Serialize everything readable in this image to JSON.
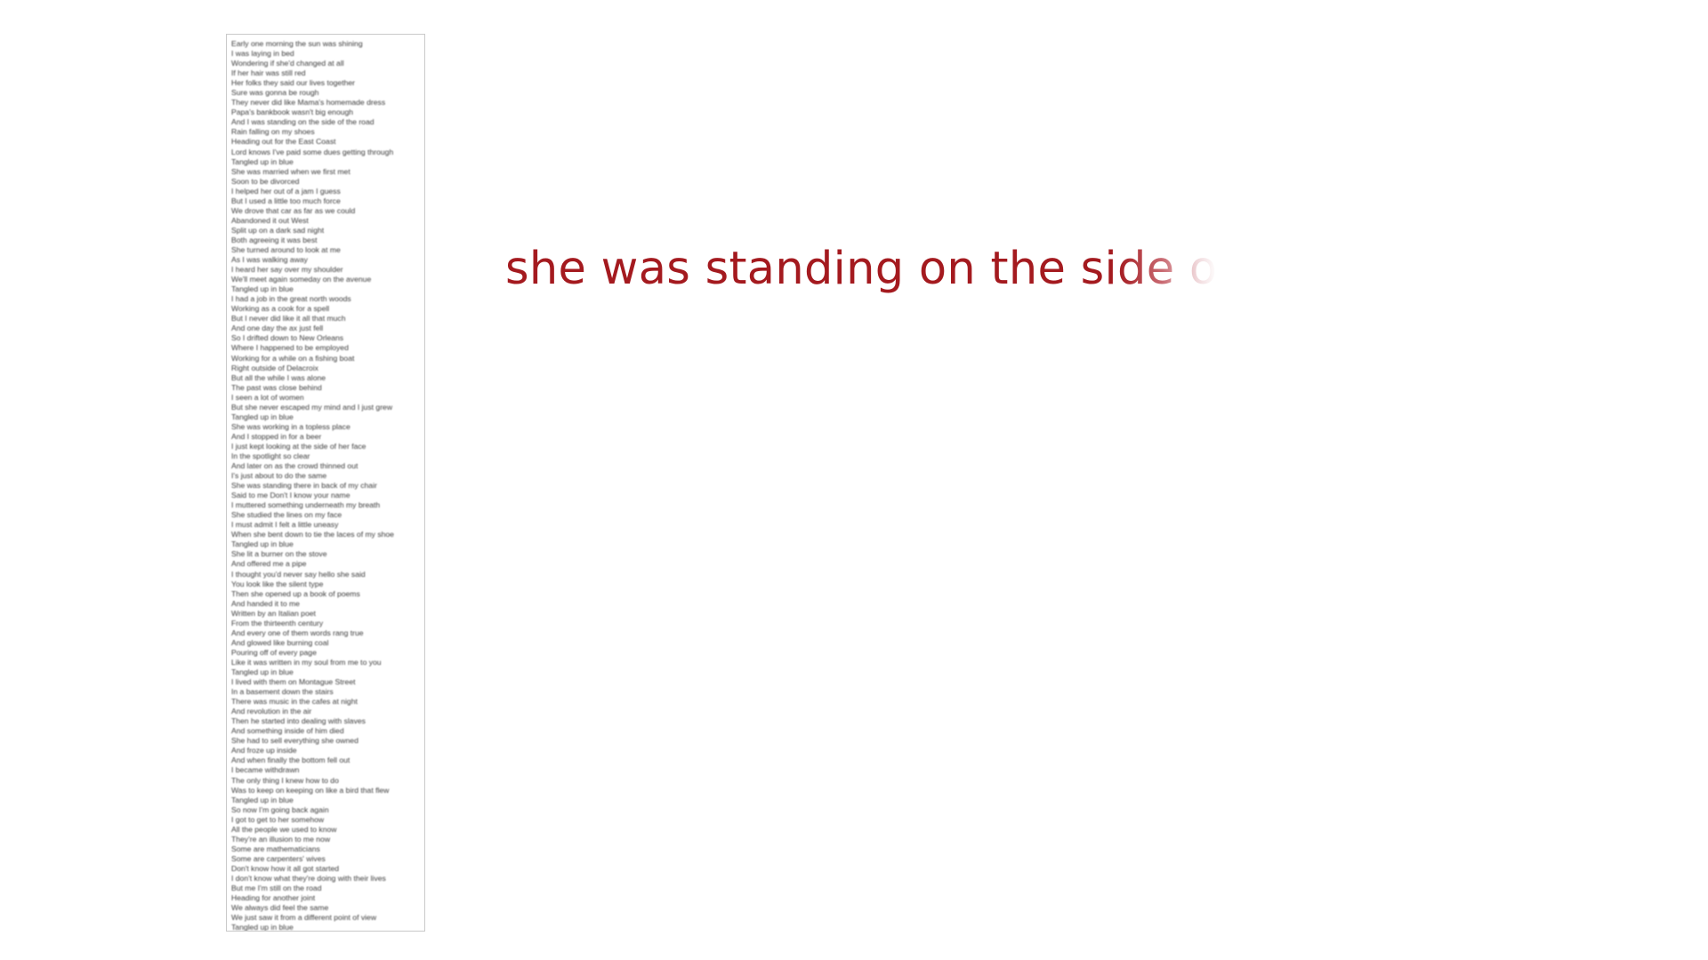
{
  "caption": {
    "visible_text": "she was standing on the si",
    "fading_text": "de o"
  },
  "lyrics": [
    "Early one morning the sun was shining",
    "I was laying in bed",
    "Wondering if she'd changed at all",
    "If her hair was still red",
    "Her folks they said our lives together",
    "Sure was gonna be rough",
    "They never did like Mama's homemade dress",
    "Papa's bankbook wasn't big enough",
    "And I was standing on the side of the road",
    "Rain falling on my shoes",
    "Heading out for the East Coast",
    "Lord knows I've paid some dues getting through",
    "Tangled up in blue",
    "She was married when we first met",
    "Soon to be divorced",
    "I helped her out of a jam I guess",
    "But I used a little too much force",
    "We drove that car as far as we could",
    "Abandoned it out West",
    "Split up on a dark sad night",
    "Both agreeing it was best",
    "She turned around to look at me",
    "As I was walking away",
    "I heard her say over my shoulder",
    "We'll meet again someday on the avenue",
    "Tangled up in blue",
    "I had a job in the great north woods",
    "Working as a cook for a spell",
    "But I never did like it all that much",
    "And one day the ax just fell",
    "So I drifted down to New Orleans",
    "Where I happened to be employed",
    "Working for a while on a fishing boat",
    "Right outside of Delacroix",
    "But all the while I was alone",
    "The past was close behind",
    "I seen a lot of women",
    "But she never escaped my mind and I just grew",
    "Tangled up in blue",
    "She was working in a topless place",
    "And I stopped in for a beer",
    "I just kept looking at the side of her face",
    "In the spotlight so clear",
    "And later on as the crowd thinned out",
    "I's just about to do the same",
    "She was standing there in back of my chair",
    "Said to me Don't I know your name",
    "I muttered something underneath my breath",
    "She studied the lines on my face",
    "I must admit I felt a little uneasy",
    "When she bent down to tie the laces of my shoe",
    "Tangled up in blue",
    "She lit a burner on the stove",
    "And offered me a pipe",
    "I thought you'd never say hello she said",
    "You look like the silent type",
    "Then she opened up a book of poems",
    "And handed it to me",
    "Written by an Italian poet",
    "From the thirteenth century",
    "And every one of them words rang true",
    "And glowed like burning coal",
    "Pouring off of every page",
    "Like it was written in my soul from me to you",
    "Tangled up in blue",
    "I lived with them on Montague Street",
    "In a basement down the stairs",
    "There was music in the cafes at night",
    "And revolution in the air",
    "Then he started into dealing with slaves",
    "And something inside of him died",
    "She had to sell everything she owned",
    "And froze up inside",
    "And when finally the bottom fell out",
    "I became withdrawn",
    "The only thing I knew how to do",
    "Was to keep on keeping on like a bird that flew",
    "Tangled up in blue",
    "So now I'm going back again",
    "I got to get to her somehow",
    "All the people we used to know",
    "They're an illusion to me now",
    "Some are mathematicians",
    "Some are carpenters' wives",
    "Don't know how it all got started",
    "I don't know what they're doing with their lives",
    "But me I'm still on the road",
    "Heading for another joint",
    "We always did feel the same",
    "We just saw it from a different point of view",
    "Tangled up in blue"
  ]
}
